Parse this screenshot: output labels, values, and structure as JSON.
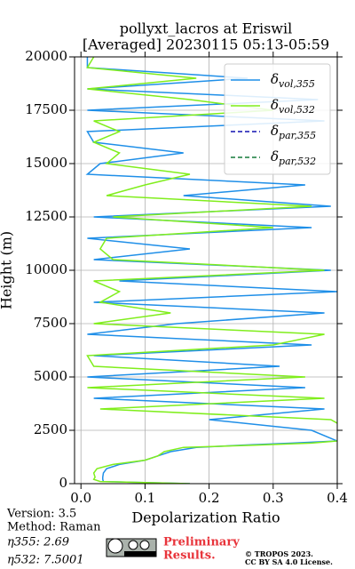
{
  "chart_data": {
    "type": "profile",
    "title": [
      "pollyxt_lacros at Eriswil",
      "[Averaged] 20230115 05:13-05:59"
    ],
    "x_label": "Depolarization Ratio",
    "y_label": "Height (m)",
    "x": [
      0,
      100,
      200,
      300,
      500,
      700,
      900,
      1100,
      1300,
      1500,
      1700,
      1800,
      1900,
      2000,
      2500,
      3000,
      3500,
      4000,
      4500,
      5000,
      5500,
      6000,
      6500,
      7000,
      7500,
      8000,
      8500,
      9000,
      9500,
      10000,
      10500,
      11000,
      11500,
      12000,
      12500,
      13000,
      13500,
      14000,
      14500,
      15000,
      15500,
      16000,
      16500,
      17000,
      17500,
      18000,
      18500,
      19000,
      19500,
      20000
    ],
    "series": [
      {
        "name": "δvol,355",
        "color": "#1f8fe8",
        "style": "solid",
        "values": [
          0.17,
          0.035,
          0.034,
          0.034,
          0.035,
          0.04,
          0.06,
          0.1,
          0.12,
          0.14,
          0.18,
          0.25,
          0.33,
          0.4,
          0.36,
          0.2,
          0.38,
          0.02,
          0.35,
          0.01,
          0.31,
          0.02,
          0.36,
          0.01,
          0.15,
          0.38,
          0.02,
          0.4,
          0.06,
          0.39,
          0.02,
          0.17,
          0.01,
          0.36,
          0.02,
          0.39,
          0.16,
          0.35,
          0.01,
          0.03,
          0.16,
          0.02,
          0.01,
          0.38,
          0.01,
          0.37,
          0.01,
          0.26,
          0.01,
          0.01
        ]
      },
      {
        "name": "δvol,532",
        "color": "#80ee1c",
        "style": "solid",
        "values": [
          0.17,
          0.03,
          0.02,
          0.022,
          0.02,
          0.025,
          0.05,
          0.1,
          0.12,
          0.13,
          0.16,
          0.27,
          0.36,
          0.4,
          0.42,
          0.39,
          0.03,
          0.38,
          0.01,
          0.35,
          0.02,
          0.01,
          0.3,
          0.38,
          0.02,
          0.14,
          0.03,
          0.06,
          0.02,
          0.38,
          0.05,
          0.03,
          0.04,
          0.3,
          0.05,
          0.36,
          0.04,
          0.1,
          0.17,
          0.04,
          0.06,
          0.02,
          0.06,
          0.02,
          0.3,
          0.17,
          0.01,
          0.18,
          0.01,
          0.02
        ]
      },
      {
        "name": "δpar,355",
        "color": "#1010b0",
        "style": "dashed"
      },
      {
        "name": "δpar,532",
        "color": "#157a3a",
        "style": "dashed"
      }
    ],
    "xlim": [
      -0.01,
      0.4
    ],
    "xticks": [
      {
        "value": 0,
        "label": "0.0"
      },
      0.1,
      0.2,
      0.3,
      0.4
    ],
    "ylim": [
      0,
      20000
    ],
    "yticks": [
      0,
      2500,
      5000,
      7500,
      10000,
      12500,
      15000,
      17500,
      20000
    ],
    "grid": true,
    "legend": "upper right"
  },
  "info": {
    "version": "Version: 3.5",
    "method": "Method: Raman",
    "eta355": "η355:   2.69",
    "eta532": "η532: 7.5001"
  },
  "footer": {
    "preliminary": [
      "Preliminary",
      "Results."
    ],
    "copyright": [
      "© TROPOS 2023.",
      "CC BY SA 4.0 License."
    ]
  }
}
